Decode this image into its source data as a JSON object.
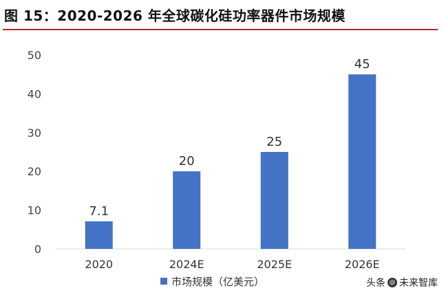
{
  "title": "图 15：2020-2026 年全球碳化硅功率器件市场规模",
  "watermark": {
    "prefix": "头条",
    "at": "@",
    "name": "未来智库"
  },
  "colors": {
    "bar": "#4472c4",
    "title_rule": "#b0262c",
    "gridline": "#d9d9d9"
  },
  "chart_data": {
    "type": "bar",
    "categories": [
      "2020",
      "2024E",
      "2025E",
      "2026E"
    ],
    "series": [
      {
        "name": "市场规模（亿美元）",
        "values": [
          7.1,
          20,
          25,
          45
        ]
      }
    ],
    "data_labels": [
      "7.1",
      "20",
      "25",
      "45"
    ],
    "ylim": [
      0,
      50
    ],
    "yticks": [
      0,
      10,
      20,
      30,
      40,
      50
    ],
    "xlabel": "",
    "ylabel": "",
    "grid": false,
    "legend": "bottom"
  }
}
